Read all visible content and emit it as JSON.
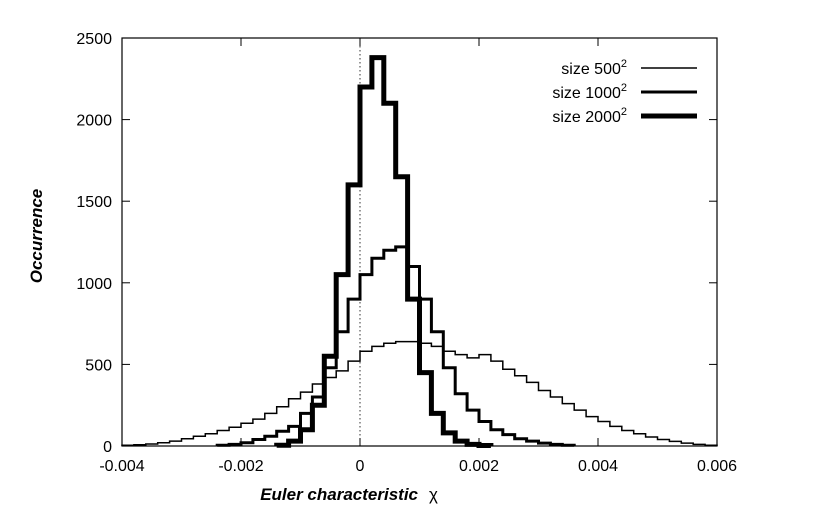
{
  "chart_data": {
    "type": "line",
    "step": true,
    "xlabel": "Euler characteristic",
    "xlabel_symbol": "χ",
    "ylabel": "Occurrence",
    "xlim": [
      -0.004,
      0.006
    ],
    "ylim": [
      0,
      2500
    ],
    "x_ticks": [
      -0.004,
      -0.002,
      0,
      0.002,
      0.004,
      0.006
    ],
    "x_tick_labels": [
      "-0.004",
      "-0.002",
      "0",
      "0.002",
      "0.004",
      "0.006"
    ],
    "y_ticks": [
      0,
      500,
      1000,
      1500,
      2000,
      2500
    ],
    "y_tick_labels": [
      "0",
      "500",
      "1000",
      "1500",
      "2000",
      "2500"
    ],
    "reference_line": {
      "x": 0,
      "style": "dotted"
    },
    "legend_position": "top-right",
    "series": [
      {
        "name": "size 500",
        "name_sup": "2",
        "line_width": 1.5,
        "x": [
          -0.004,
          -0.0038,
          -0.0036,
          -0.0034,
          -0.0032,
          -0.003,
          -0.0028,
          -0.0026,
          -0.0024,
          -0.0022,
          -0.002,
          -0.0018,
          -0.0016,
          -0.0014,
          -0.0012,
          -0.001,
          -0.0008,
          -0.0006,
          -0.0004,
          -0.0002,
          0.0,
          0.0002,
          0.0004,
          0.0006,
          0.0008,
          0.001,
          0.0012,
          0.0014,
          0.0016,
          0.0018,
          0.002,
          0.0022,
          0.0024,
          0.0026,
          0.0028,
          0.003,
          0.0032,
          0.0034,
          0.0036,
          0.0038,
          0.004,
          0.0042,
          0.0044,
          0.0046,
          0.0048,
          0.005,
          0.0052,
          0.0054,
          0.0056,
          0.0058
        ],
        "values": [
          5,
          8,
          12,
          20,
          30,
          45,
          60,
          75,
          95,
          115,
          140,
          165,
          200,
          240,
          290,
          330,
          380,
          420,
          460,
          520,
          580,
          610,
          630,
          640,
          640,
          630,
          610,
          580,
          560,
          540,
          560,
          520,
          470,
          430,
          390,
          340,
          300,
          260,
          220,
          180,
          150,
          120,
          95,
          75,
          55,
          40,
          28,
          18,
          10,
          5
        ]
      },
      {
        "name": "size 1000",
        "name_sup": "2",
        "line_width": 3,
        "x": [
          -0.0024,
          -0.0022,
          -0.002,
          -0.0018,
          -0.0016,
          -0.0014,
          -0.0012,
          -0.001,
          -0.0008,
          -0.0006,
          -0.0004,
          -0.0002,
          0.0,
          0.0002,
          0.0004,
          0.0006,
          0.0008,
          0.001,
          0.0012,
          0.0014,
          0.0016,
          0.0018,
          0.002,
          0.0022,
          0.0024,
          0.0026,
          0.0028,
          0.003,
          0.0032,
          0.0034
        ],
        "values": [
          5,
          10,
          20,
          40,
          60,
          90,
          120,
          200,
          300,
          480,
          700,
          900,
          1050,
          1150,
          1200,
          1220,
          1100,
          900,
          700,
          480,
          320,
          220,
          150,
          100,
          70,
          45,
          30,
          18,
          10,
          5
        ]
      },
      {
        "name": "size 2000",
        "name_sup": "2",
        "line_width": 5,
        "x": [
          -0.0014,
          -0.0012,
          -0.001,
          -0.0008,
          -0.0006,
          -0.0004,
          -0.0002,
          0.0,
          0.0002,
          0.0004,
          0.0006,
          0.0008,
          0.001,
          0.0012,
          0.0014,
          0.0016,
          0.0018,
          0.002
        ],
        "values": [
          5,
          30,
          100,
          250,
          550,
          1050,
          1600,
          2200,
          2380,
          2100,
          1650,
          900,
          450,
          200,
          80,
          30,
          10,
          3
        ]
      }
    ]
  }
}
